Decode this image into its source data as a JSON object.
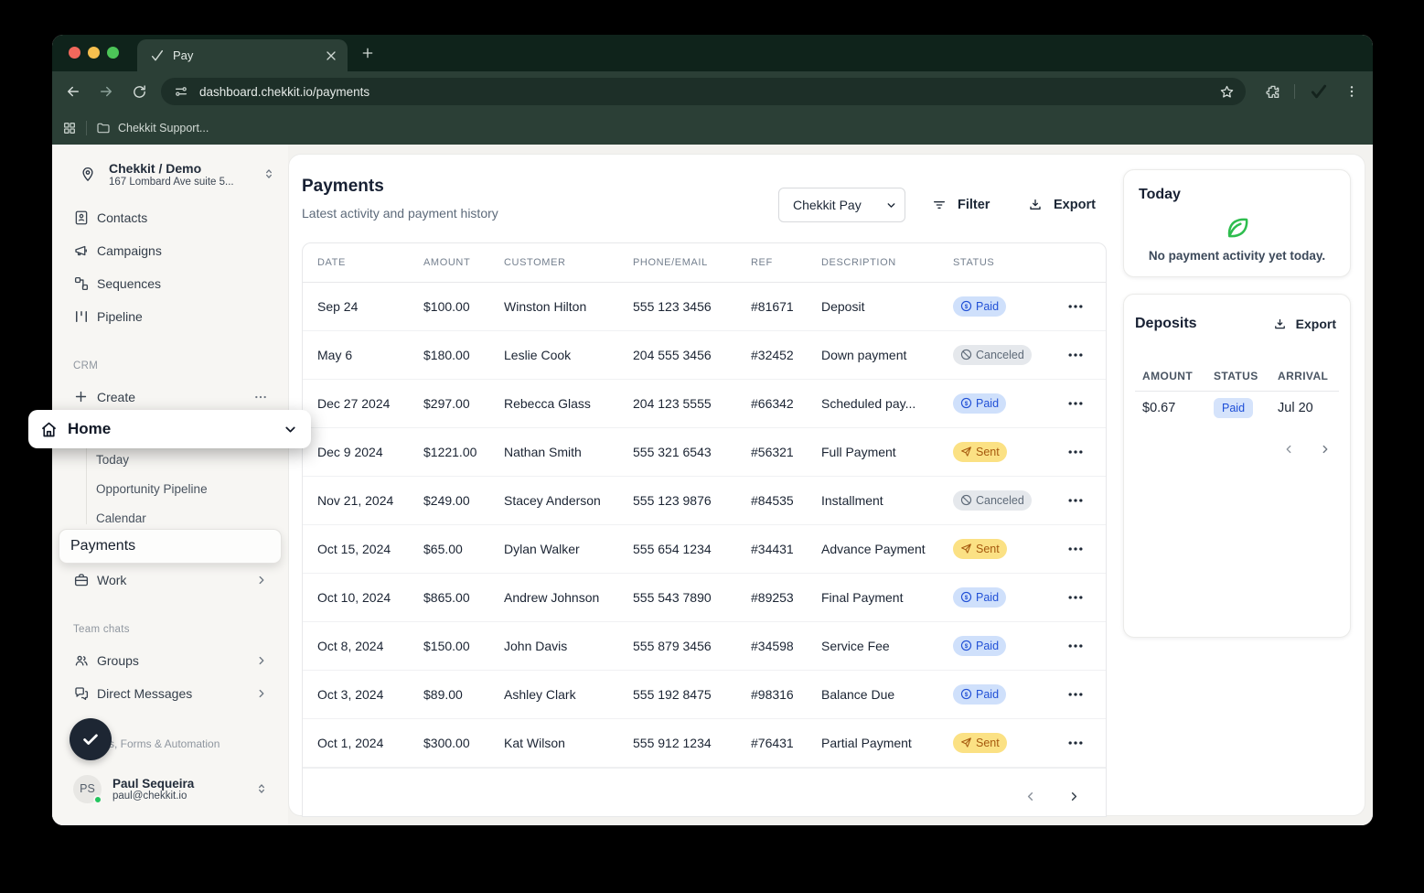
{
  "browser": {
    "tab_title": "Pay",
    "url": "dashboard.chekkit.io/payments",
    "bookmarks_folder": "Chekkit Support..."
  },
  "sidebar": {
    "workspace": {
      "name": "Chekkit / Demo",
      "address": "167 Lombard Ave suite 5..."
    },
    "nav": [
      {
        "label": "Contacts"
      },
      {
        "label": "Campaigns"
      },
      {
        "label": "Sequences"
      },
      {
        "label": "Pipeline"
      }
    ],
    "crm_section": "CRM",
    "create_label": "Create",
    "home_label": "Home",
    "home_subitems": [
      {
        "label": "Today"
      },
      {
        "label": "Opportunity Pipeline"
      },
      {
        "label": "Calendar"
      }
    ],
    "payments_label": "Payments",
    "work_label": "Work",
    "team_section": "Team chats",
    "groups_label": "Groups",
    "dm_label": "Direct Messages",
    "automation_label": "s, Forms & Automation",
    "user": {
      "initials": "PS",
      "name": "Paul Sequeira",
      "email": "paul@chekkit.io"
    }
  },
  "main": {
    "title": "Payments",
    "subtitle": "Latest activity and payment history",
    "account_select": "Chekkit Pay",
    "filter_label": "Filter",
    "export_label": "Export",
    "table": {
      "headers": [
        "DATE",
        "AMOUNT",
        "CUSTOMER",
        "PHONE/EMAIL",
        "REF",
        "DESCRIPTION",
        "STATUS"
      ],
      "rows": [
        {
          "date": "Sep 24",
          "amount": "$100.00",
          "customer": "Winston Hilton",
          "phone": "555 123 3456",
          "ref": "#81671",
          "description": "Deposit",
          "status": "Paid"
        },
        {
          "date": "May 6",
          "amount": "$180.00",
          "customer": "Leslie Cook",
          "phone": "204 555 3456",
          "ref": "#32452",
          "description": "Down payment",
          "status": "Canceled"
        },
        {
          "date": "Dec 27 2024",
          "amount": "$297.00",
          "customer": "Rebecca Glass",
          "phone": "204 123 5555",
          "ref": "#66342",
          "description": "Scheduled pay...",
          "status": "Paid"
        },
        {
          "date": "Dec 9 2024",
          "amount": "$1221.00",
          "customer": "Nathan Smith",
          "phone": "555 321 6543",
          "ref": "#56321",
          "description": "Full Payment",
          "status": "Sent"
        },
        {
          "date": "Nov 21, 2024",
          "amount": "$249.00",
          "customer": "Stacey Anderson",
          "phone": "555 123 9876",
          "ref": "#84535",
          "description": "Installment",
          "status": "Canceled"
        },
        {
          "date": "Oct 15, 2024",
          "amount": "$65.00",
          "customer": "Dylan Walker",
          "phone": "555 654 1234",
          "ref": "#34431",
          "description": "Advance Payment",
          "status": "Sent"
        },
        {
          "date": "Oct 10, 2024",
          "amount": "$865.00",
          "customer": "Andrew Johnson",
          "phone": "555 543 7890",
          "ref": "#89253",
          "description": "Final Payment",
          "status": "Paid"
        },
        {
          "date": "Oct 8, 2024",
          "amount": "$150.00",
          "customer": "John Davis",
          "phone": "555 879 3456",
          "ref": "#34598",
          "description": "Service Fee",
          "status": "Paid"
        },
        {
          "date": "Oct 3, 2024",
          "amount": "$89.00",
          "customer": "Ashley Clark",
          "phone": "555 192 8475",
          "ref": "#98316",
          "description": "Balance Due",
          "status": "Paid"
        },
        {
          "date": "Oct 1, 2024",
          "amount": "$300.00",
          "customer": "Kat Wilson",
          "phone": "555 912 1234",
          "ref": "#76431",
          "description": "Partial Payment",
          "status": "Sent"
        }
      ]
    }
  },
  "statuses": {
    "Paid": {
      "bg": "#cfe0fb",
      "fg": "#2150d6",
      "icon": "dollar-circle-icon"
    },
    "Canceled": {
      "bg": "#e5e8ec",
      "fg": "#5f6b79",
      "icon": "slash-circle-icon"
    },
    "Sent": {
      "bg": "#fbe184",
      "fg": "#a6590e",
      "icon": "paper-plane-icon"
    }
  },
  "right_panel": {
    "today": {
      "title": "Today",
      "message": "No payment activity yet today.",
      "leaf_color": "#2ebd4e"
    },
    "deposits": {
      "title": "Deposits",
      "export_label": "Export",
      "headers": [
        "AMOUNT",
        "STATUS",
        "ARRIVAL"
      ],
      "rows": [
        {
          "amount": "$0.67",
          "status": "Paid",
          "arrival": "Jul 20"
        }
      ]
    }
  }
}
